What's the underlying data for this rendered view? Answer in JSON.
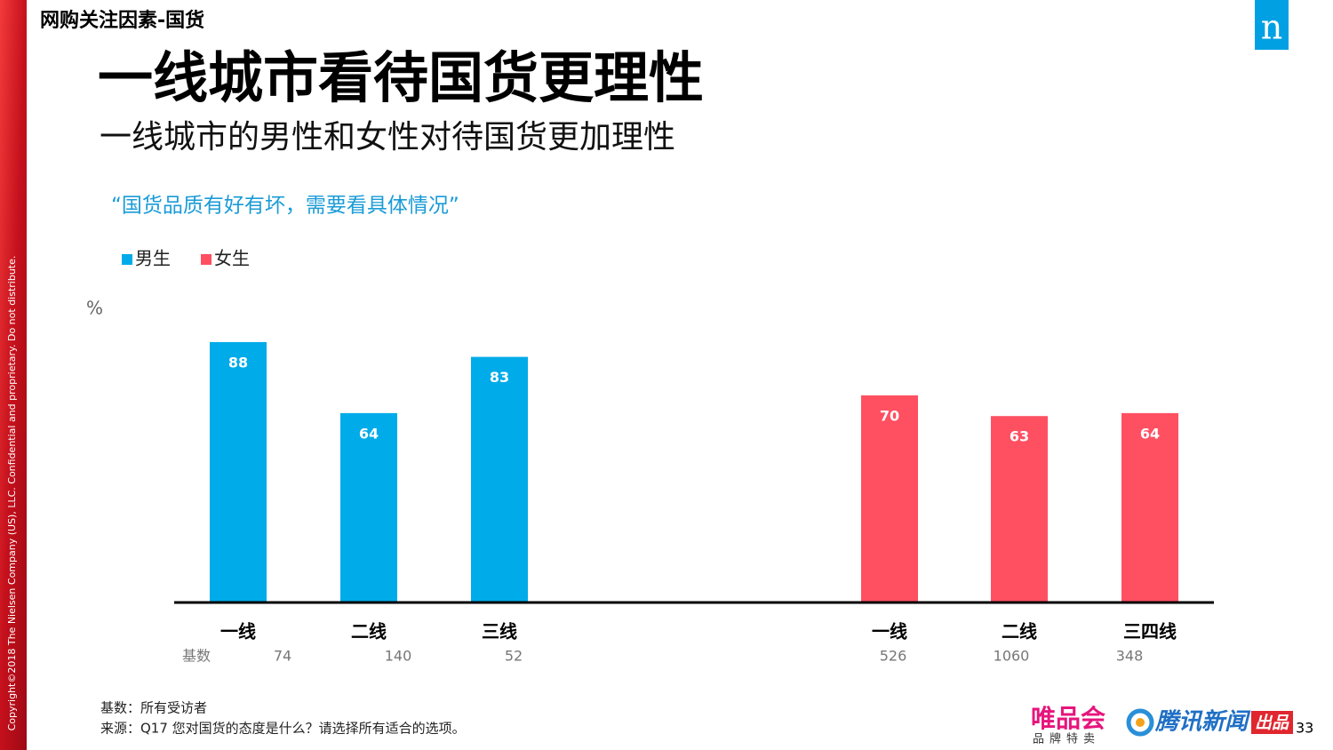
{
  "section": "网购关注因素-国货",
  "title": "一线城市看待国货更理性",
  "subtitle": "一线城市的男性和女性对待国货更加理性",
  "copyright": "Copyright©2018 The Nielsen Company (US), LLC. Confidential and proprietary. Do not distribute.",
  "logo": "n",
  "footnotes": [
    "基数：所有受访者",
    "来源：Q17 您对国货的态度是什么？请选择所有适合的选项。"
  ],
  "brands": {
    "vip": "唯品会",
    "vip_tagline": "品牌特卖",
    "tencent": "腾讯新闻",
    "produced": "出品"
  },
  "page_number": "33",
  "chart_data": {
    "type": "bar",
    "title": "“国货品质有好有坏，需要看具体情况”",
    "y_label": "%",
    "categories": [
      "一线",
      "二线",
      "三线",
      "一线",
      "二线",
      "三四线"
    ],
    "series": [
      {
        "name": "男生",
        "color": "#00abe9",
        "values": [
          88,
          64,
          83,
          null,
          null,
          null
        ]
      },
      {
        "name": "女生",
        "color": "#ff5062",
        "values": [
          null,
          null,
          null,
          70,
          63,
          64
        ]
      }
    ],
    "ylim": [
      0,
      100
    ],
    "base_label": "基数",
    "base_values": [
      74,
      140,
      52,
      526,
      1060,
      348
    ]
  }
}
